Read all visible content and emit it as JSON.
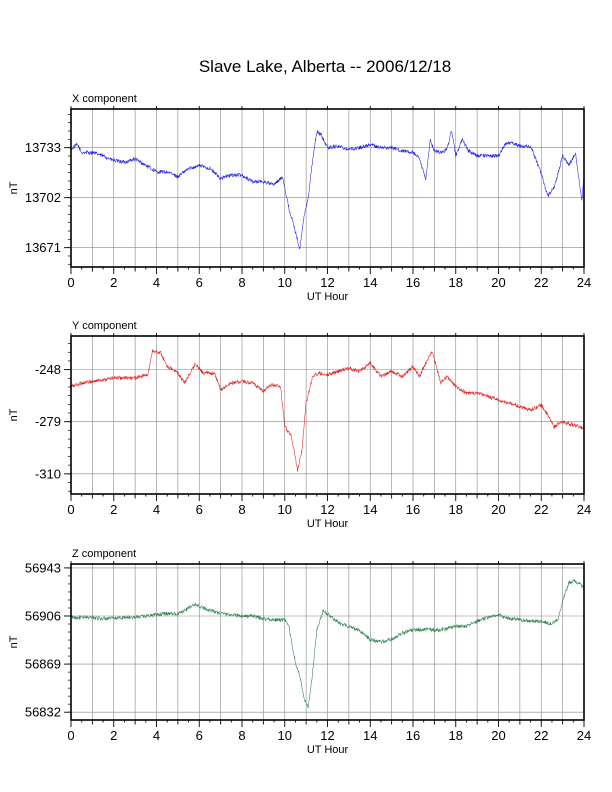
{
  "title": "Slave Lake, Alberta -- 2006/12/18",
  "chart_data": [
    {
      "type": "line",
      "title": "X component",
      "xlabel": "UT Hour",
      "ylabel": "nT",
      "xlim": [
        0,
        24
      ],
      "ylim": [
        13659,
        13757
      ],
      "xticks": [
        "0",
        "2",
        "4",
        "6",
        "8",
        "10",
        "12",
        "14",
        "16",
        "18",
        "20",
        "22",
        "24"
      ],
      "yticks": [
        "13671",
        "13702",
        "13733"
      ],
      "color": "#2020e0",
      "x": [
        0,
        0.3,
        0.5,
        1,
        1.5,
        2,
        2.5,
        3,
        3.5,
        4,
        4.5,
        5,
        5.5,
        6,
        6.5,
        7,
        7.5,
        8,
        8.5,
        9,
        9.5,
        9.9,
        10.2,
        10.5,
        10.7,
        10.9,
        11.1,
        11.3,
        11.5,
        11.7,
        12,
        12.5,
        13,
        13.5,
        14,
        14.5,
        15,
        15.5,
        16,
        16.3,
        16.6,
        16.8,
        17,
        17.3,
        17.6,
        17.8,
        18,
        18.3,
        18.6,
        19,
        19.5,
        20,
        20.3,
        20.6,
        21,
        21.5,
        22,
        22.3,
        22.6,
        23,
        23.3,
        23.6,
        23.9,
        24
      ],
      "values": [
        13732,
        13735,
        13730,
        13730,
        13728,
        13725,
        13724,
        13726,
        13722,
        13718,
        13718,
        13715,
        13720,
        13722,
        13720,
        13714,
        13716,
        13716,
        13712,
        13712,
        13710,
        13715,
        13695,
        13681,
        13670,
        13690,
        13702,
        13725,
        13743,
        13741,
        13733,
        13734,
        13732,
        13733,
        13735,
        13733,
        13733,
        13731,
        13730,
        13726,
        13713,
        13738,
        13731,
        13730,
        13732,
        13744,
        13728,
        13738,
        13731,
        13728,
        13728,
        13728,
        13735,
        13736,
        13734,
        13734,
        13717,
        13703,
        13708,
        13728,
        13722,
        13730,
        13700,
        13715
      ]
    },
    {
      "type": "line",
      "title": "Y component",
      "xlabel": "UT Hour",
      "ylabel": "nT",
      "xlim": [
        0,
        24
      ],
      "ylim": [
        -322,
        -228
      ],
      "xticks": [
        "0",
        "2",
        "4",
        "6",
        "8",
        "10",
        "12",
        "14",
        "16",
        "18",
        "20",
        "22",
        "24"
      ],
      "yticks": [
        "-248",
        "-279",
        "-310"
      ],
      "color": "#e02020",
      "x": [
        0,
        0.5,
        1,
        1.5,
        2,
        2.5,
        3,
        3.6,
        3.8,
        4.2,
        4.5,
        5,
        5.3,
        5.8,
        6.2,
        6.7,
        7,
        7.5,
        8,
        8.5,
        9,
        9.4,
        9.8,
        10,
        10.3,
        10.6,
        10.8,
        11,
        11.3,
        11.6,
        12,
        12.5,
        13,
        13.5,
        14,
        14.5,
        15,
        15.5,
        16,
        16.3,
        16.6,
        16.9,
        17.3,
        17.6,
        18,
        18.5,
        19,
        19.5,
        20,
        20.5,
        21,
        21.5,
        22,
        22.3,
        22.6,
        23,
        23.5,
        24
      ],
      "values": [
        -258,
        -256,
        -255,
        -254,
        -253,
        -253,
        -253,
        -251,
        -237,
        -238,
        -246,
        -250,
        -256,
        -245,
        -250,
        -250,
        -260,
        -256,
        -255,
        -256,
        -261,
        -257,
        -258,
        -282,
        -287,
        -308,
        -296,
        -268,
        -252,
        -250,
        -251,
        -249,
        -247,
        -249,
        -244,
        -252,
        -249,
        -252,
        -246,
        -252,
        -244,
        -237,
        -256,
        -252,
        -258,
        -262,
        -262,
        -264,
        -266,
        -268,
        -270,
        -272,
        -269,
        -275,
        -282,
        -279,
        -281,
        -283
      ]
    },
    {
      "type": "line",
      "title": "Z component",
      "xlabel": "UT Hour",
      "ylabel": "nT",
      "xlim": [
        0,
        24
      ],
      "ylim": [
        56826,
        56946
      ],
      "xticks": [
        "0",
        "2",
        "4",
        "6",
        "8",
        "10",
        "12",
        "14",
        "16",
        "18",
        "20",
        "22",
        "24"
      ],
      "yticks": [
        "56832",
        "56869",
        "56906",
        "56943"
      ],
      "color": "#2e8050",
      "x": [
        0,
        0.5,
        1,
        1.5,
        2,
        2.5,
        3,
        3.5,
        4,
        4.5,
        5,
        5.5,
        5.8,
        6.2,
        6.6,
        7,
        7.5,
        8,
        8.5,
        9,
        9.5,
        10,
        10.2,
        10.5,
        10.7,
        10.9,
        11.1,
        11.3,
        11.5,
        11.8,
        12.2,
        12.6,
        13,
        13.5,
        14,
        14.5,
        15,
        15.5,
        16,
        16.5,
        17,
        17.5,
        18,
        18.5,
        19,
        19.5,
        20,
        20.5,
        21,
        21.5,
        22,
        22.5,
        22.8,
        23,
        23.3,
        23.6,
        24
      ],
      "values": [
        56905,
        56905,
        56905,
        56904,
        56904,
        56905,
        56905,
        56906,
        56907,
        56908,
        56908,
        56912,
        56915,
        56912,
        56910,
        56908,
        56907,
        56906,
        56906,
        56904,
        56903,
        56903,
        56897,
        56870,
        56860,
        56843,
        56835,
        56862,
        56895,
        56910,
        56905,
        56900,
        56898,
        56895,
        56888,
        56886,
        56888,
        56893,
        56895,
        56896,
        56895,
        56896,
        56898,
        56898,
        56902,
        56905,
        56907,
        56904,
        56903,
        56902,
        56902,
        56900,
        56904,
        56917,
        56932,
        56933,
        56928
      ]
    }
  ]
}
